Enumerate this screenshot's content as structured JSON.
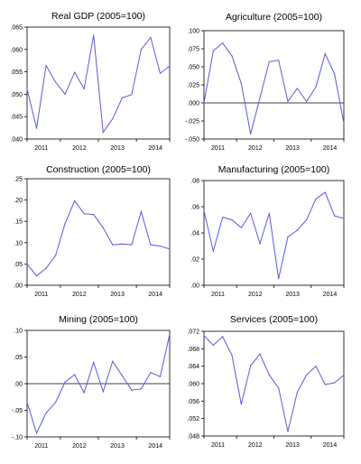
{
  "chart_data": [
    {
      "type": "line",
      "title": "Real GDP (2005=100)",
      "x_tick_labels": [
        "2011",
        "2012",
        "2013",
        "2014"
      ],
      "ylim": [
        0.04,
        0.065
      ],
      "y_ticks": [
        0.04,
        0.045,
        0.05,
        0.055,
        0.06,
        0.065
      ],
      "y_tick_labels": [
        ".040",
        ".045",
        ".050",
        ".055",
        ".060",
        ".065"
      ],
      "zero_line": false,
      "series": [
        {
          "color": "#5a5adc",
          "values": [
            0.0512,
            0.0424,
            0.0564,
            0.0527,
            0.05,
            0.0549,
            0.0512,
            0.0632,
            0.0415,
            0.0445,
            0.0492,
            0.0499,
            0.06,
            0.0627,
            0.0547,
            0.0563
          ]
        }
      ]
    },
    {
      "type": "line",
      "title": "Agriculture (2005=100)",
      "x_tick_labels": [
        "2011",
        "2012",
        "2013",
        "2014"
      ],
      "ylim": [
        -0.05,
        0.1
      ],
      "y_ticks": [
        -0.05,
        -0.025,
        0.0,
        0.025,
        0.05,
        0.075,
        0.1
      ],
      "y_tick_labels": [
        "-.050",
        "-.025",
        ".000",
        ".025",
        ".050",
        ".075",
        ".100"
      ],
      "zero_line": true,
      "series": [
        {
          "color": "#5a5adc",
          "values": [
            0.0,
            0.072,
            0.083,
            0.065,
            0.027,
            -0.043,
            0.007,
            0.057,
            0.059,
            0.002,
            0.02,
            0.002,
            0.022,
            0.068,
            0.04,
            -0.028
          ]
        }
      ]
    },
    {
      "type": "line",
      "title": "Construction (2005=100)",
      "x_tick_labels": [
        "2011",
        "2012",
        "2013",
        "2014"
      ],
      "ylim": [
        0.0,
        0.25
      ],
      "y_ticks": [
        0.0,
        0.05,
        0.1,
        0.15,
        0.2,
        0.25
      ],
      "y_tick_labels": [
        ".00",
        ".05",
        ".10",
        ".15",
        ".20",
        ".25"
      ],
      "zero_line": false,
      "series": [
        {
          "color": "#5a5adc",
          "values": [
            0.05,
            0.022,
            0.04,
            0.07,
            0.145,
            0.198,
            0.168,
            0.166,
            0.135,
            0.095,
            0.097,
            0.095,
            0.173,
            0.095,
            0.092,
            0.085
          ]
        }
      ]
    },
    {
      "type": "line",
      "title": "Manufacturing (2005=100)",
      "x_tick_labels": [
        "2011",
        "2012",
        "2013",
        "2014"
      ],
      "ylim": [
        0.0,
        0.08
      ],
      "y_ticks": [
        0.0,
        0.02,
        0.04,
        0.06,
        0.08
      ],
      "y_tick_labels": [
        ".00",
        ".02",
        ".04",
        ".06",
        ".08"
      ],
      "zero_line": false,
      "series": [
        {
          "color": "#5a5adc",
          "values": [
            0.057,
            0.026,
            0.052,
            0.05,
            0.044,
            0.055,
            0.032,
            0.055,
            0.005,
            0.037,
            0.042,
            0.05,
            0.066,
            0.071,
            0.053,
            0.051
          ]
        }
      ]
    },
    {
      "type": "line",
      "title": "Mining (2005=100)",
      "x_tick_labels": [
        "2011",
        "2012",
        "2013",
        "2014"
      ],
      "ylim": [
        -0.1,
        0.1
      ],
      "y_ticks": [
        -0.1,
        -0.05,
        0.0,
        0.05,
        0.1
      ],
      "y_tick_labels": [
        "-.10",
        "-.05",
        ".00",
        ".05",
        ".10"
      ],
      "zero_line": true,
      "series": [
        {
          "color": "#5a5adc",
          "values": [
            -0.035,
            -0.093,
            -0.055,
            -0.035,
            0.003,
            0.017,
            -0.017,
            0.04,
            -0.015,
            0.042,
            0.015,
            -0.012,
            -0.01,
            0.021,
            0.013,
            0.093
          ]
        }
      ]
    },
    {
      "type": "line",
      "title": "Services (2005=100)",
      "x_tick_labels": [
        "2011",
        "2012",
        "2013",
        "2014"
      ],
      "ylim": [
        0.048,
        0.072
      ],
      "y_ticks": [
        0.048,
        0.052,
        0.056,
        0.06,
        0.064,
        0.068,
        0.072
      ],
      "y_tick_labels": [
        ".048",
        ".052",
        ".056",
        ".060",
        ".064",
        ".068",
        ".072"
      ],
      "zero_line": false,
      "series": [
        {
          "color": "#5a5adc",
          "values": [
            0.071,
            0.0688,
            0.0708,
            0.0665,
            0.0553,
            0.0641,
            0.0668,
            0.062,
            0.059,
            0.049,
            0.058,
            0.062,
            0.064,
            0.0598,
            0.0602,
            0.062
          ]
        }
      ]
    }
  ]
}
